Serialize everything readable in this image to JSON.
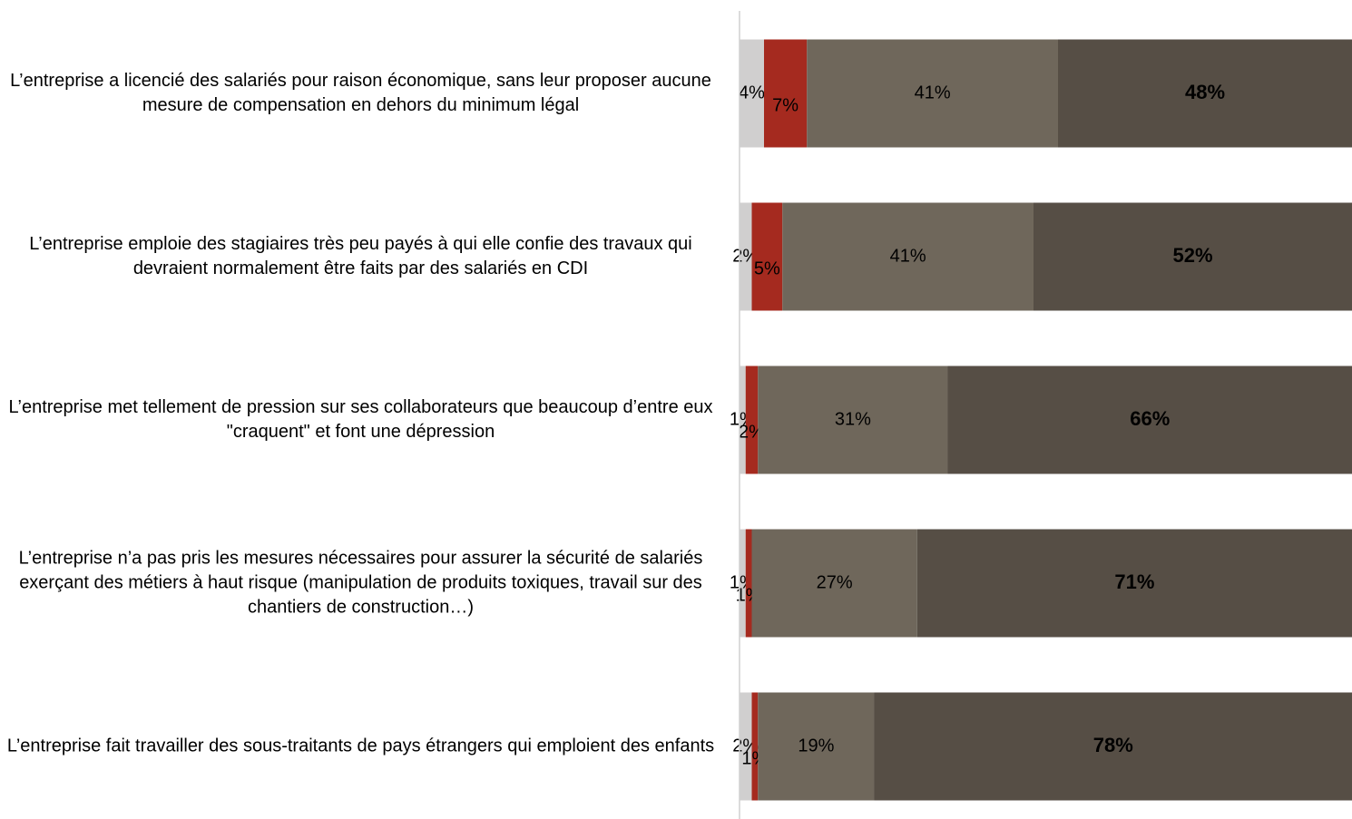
{
  "chart_data": {
    "type": "stacked-barh",
    "categories": [
      "L’entreprise a licencié des salariés pour raison économique, sans leur proposer aucune mesure de compensation en dehors du minimum légal",
      "L’entreprise emploie des stagiaires très peu payés à qui elle confie des travaux qui devraient normalement être faits par des salariés en CDI",
      "L’entreprise met tellement de pression sur ses collaborateurs que beaucoup d’entre eux \"craquent\" et font une dépression",
      "L’entreprise n’a pas pris les mesures nécessaires pour assurer la sécurité de salariés exerçant des métiers à haut risque (manipulation de produits toxiques, travail sur des chantiers de construction…)",
      "L’entreprise fait travailler des sous-traitants de pays étrangers qui emploient des enfants"
    ],
    "series": [
      {
        "color": "#d0cfcf",
        "values": [
          4,
          2,
          1,
          1,
          2
        ],
        "value_labels": [
          "4%",
          "2%",
          "1%",
          "1%",
          "2%"
        ]
      },
      {
        "color": "#a52a1f",
        "values": [
          7,
          5,
          2,
          1,
          1
        ],
        "value_labels": [
          "7%",
          "5%",
          "2%",
          "1%",
          "1%"
        ]
      },
      {
        "color": "#6f675b",
        "values": [
          41,
          41,
          31,
          27,
          19
        ],
        "value_labels": [
          "41%",
          "41%",
          "31%",
          "27%",
          "19%"
        ]
      },
      {
        "color": "#564e45",
        "values": [
          48,
          52,
          66,
          71,
          78
        ],
        "value_labels": [
          "48%",
          "52%",
          "66%",
          "71%",
          "78%"
        ],
        "bold": true
      }
    ],
    "xlim": [
      0,
      100
    ]
  }
}
